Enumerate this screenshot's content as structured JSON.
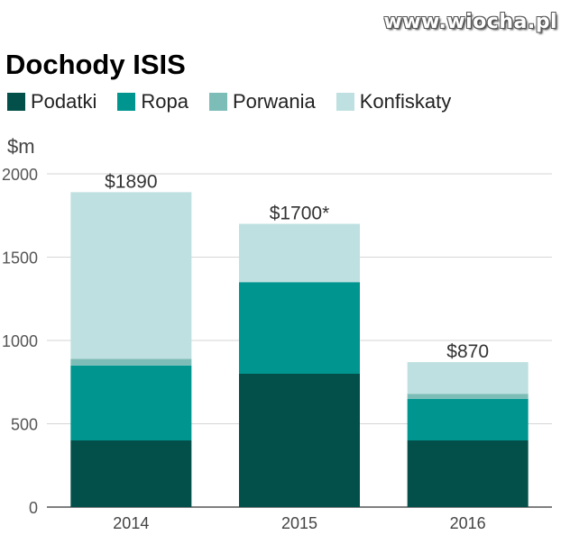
{
  "watermark": "www.wiocha.pl",
  "title": "Dochody ISIS",
  "unit": "$m",
  "colors": {
    "Podatki": "#03504a",
    "Ropa": "#00958f",
    "Porwania": "#7dbdb7",
    "Konfiskaty": "#bfe0e0"
  },
  "chart_data": {
    "type": "bar",
    "stacked": true,
    "title": "Dochody ISIS",
    "ylabel": "$m",
    "xlabel": "",
    "ylim": [
      0,
      2000
    ],
    "yticks": [
      0,
      500,
      1000,
      1500,
      2000
    ],
    "categories": [
      "2014",
      "2015",
      "2016"
    ],
    "series": [
      {
        "name": "Podatki",
        "values": [
          400,
          800,
          400
        ]
      },
      {
        "name": "Ropa",
        "values": [
          450,
          550,
          250
        ]
      },
      {
        "name": "Porwania",
        "values": [
          40,
          0,
          30
        ]
      },
      {
        "name": "Konfiskaty",
        "values": [
          1000,
          350,
          190
        ]
      }
    ],
    "totals_labels": [
      "$1890",
      "$1700*",
      "$870"
    ],
    "grid": true,
    "legend": "top"
  }
}
